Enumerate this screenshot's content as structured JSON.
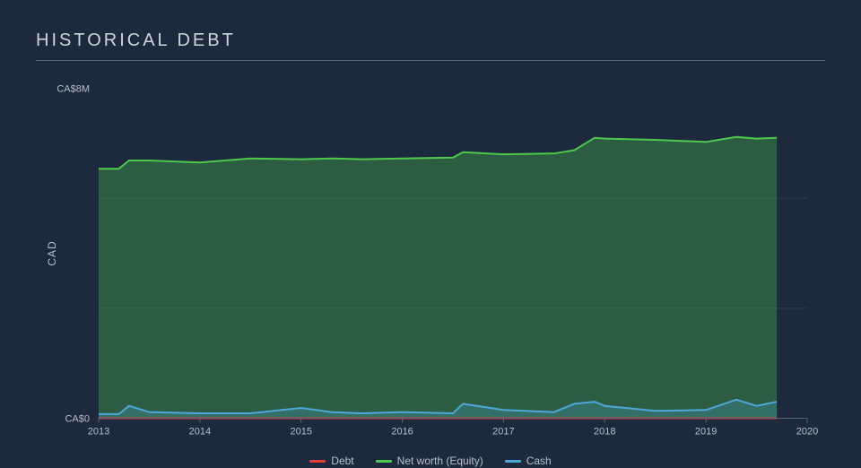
{
  "title": "HISTORICAL DEBT",
  "chart": {
    "type": "area",
    "background": "#1d2a3d",
    "grid_color": "#404c5e",
    "axis_color": "#5a6575",
    "label_color": "#b8bfc9",
    "label_fontsize": 11,
    "title_fontsize": 20,
    "xlim": [
      2013,
      2020
    ],
    "ylim": [
      0,
      8
    ],
    "xticks": [
      2013,
      2014,
      2015,
      2016,
      2017,
      2018,
      2019,
      2020
    ],
    "yticks": [
      0,
      8
    ],
    "ytick_labels": [
      "CA$0",
      "CA$8M"
    ],
    "ygrid_lines": [
      2.6667,
      5.3333
    ],
    "ylabel": "CAD",
    "x": [
      2013.0,
      2013.2,
      2013.3,
      2013.5,
      2014.0,
      2014.5,
      2015.0,
      2015.3,
      2015.6,
      2016.0,
      2016.5,
      2016.6,
      2017.0,
      2017.5,
      2017.7,
      2017.9,
      2018.0,
      2018.5,
      2019.0,
      2019.3,
      2019.5,
      2019.7
    ],
    "series": [
      {
        "name": "Debt",
        "color": "#e63d3d",
        "values": [
          0,
          0,
          0,
          0,
          0,
          0,
          0,
          0,
          0,
          0,
          0,
          0,
          0,
          0,
          0,
          0,
          0,
          0,
          0,
          0,
          0,
          0
        ],
        "fill_opacity": 0.0,
        "line_width": 2
      },
      {
        "name": "Net worth (Equity)",
        "color": "#4ec94e",
        "values": [
          6.05,
          6.05,
          6.25,
          6.25,
          6.2,
          6.3,
          6.28,
          6.3,
          6.28,
          6.3,
          6.32,
          6.45,
          6.4,
          6.42,
          6.5,
          6.8,
          6.78,
          6.75,
          6.7,
          6.82,
          6.78,
          6.8
        ],
        "fill_opacity": 0.32,
        "line_width": 2
      },
      {
        "name": "Cash",
        "color": "#4ba8d8",
        "values": [
          0.1,
          0.1,
          0.3,
          0.15,
          0.12,
          0.12,
          0.25,
          0.15,
          0.12,
          0.15,
          0.12,
          0.35,
          0.2,
          0.15,
          0.35,
          0.4,
          0.3,
          0.18,
          0.2,
          0.45,
          0.3,
          0.4
        ],
        "fill_opacity": 0.25,
        "line_width": 2
      }
    ]
  }
}
